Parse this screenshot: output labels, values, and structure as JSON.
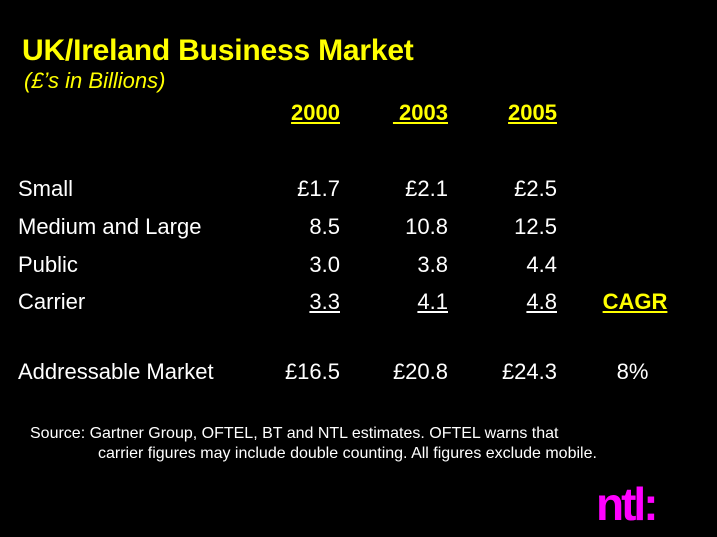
{
  "title": "UK/Ireland Business Market",
  "subtitle": "(£’s in Billions)",
  "years": [
    "2000",
    " 2003",
    "2005"
  ],
  "rows": [
    {
      "label": "Small",
      "values": [
        "£1.7",
        "£2.1",
        "£2.5"
      ]
    },
    {
      "label": "Medium and Large",
      "values": [
        "8.5",
        "10.8",
        "12.5"
      ]
    },
    {
      "label": "Public",
      "values": [
        "3.0",
        "3.8",
        "4.4"
      ]
    },
    {
      "label": "Carrier",
      "values": [
        "3.3",
        "4.1",
        "4.8"
      ]
    },
    {
      "label": "Addressable Market",
      "values": [
        "£16.5",
        "£20.8",
        "£24.3"
      ]
    }
  ],
  "cagr_label": "CAGR",
  "cagr_value": "8%",
  "source_line1": "Source: Gartner Group, OFTEL, BT and NTL estimates.  OFTEL warns that",
  "source_line2": "carrier figures may include double counting.  All figures exclude mobile.",
  "logo_text": "ntl:",
  "colors": {
    "background": "#000000",
    "accent": "#ffff00",
    "logo": "#ff00ff",
    "text": "#ffffff"
  }
}
